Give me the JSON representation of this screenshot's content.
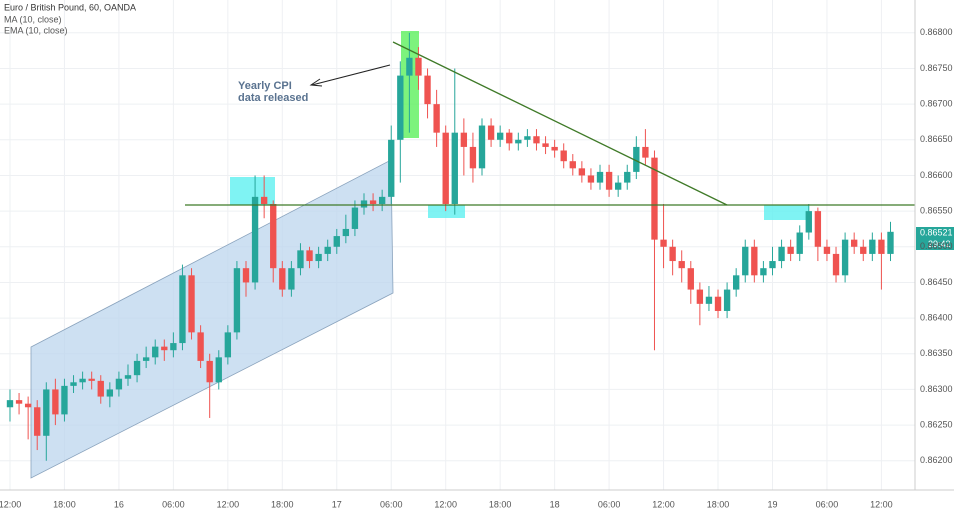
{
  "chart_data": {
    "type": "candlestick",
    "title": "Euro / British Pound, 60, OANDA",
    "indicators": [
      "MA (10, close)",
      "EMA (10, close)"
    ],
    "annotation": [
      "Yearly CPI",
      "data released"
    ],
    "last_price_label": "0.86521",
    "countdown": "29:42",
    "up_color": "#26a69a",
    "down_color": "#ef5350",
    "x": [
      0,
      1,
      2,
      3,
      4,
      5,
      6,
      7,
      8,
      9,
      10,
      11,
      12,
      13,
      14,
      15,
      16,
      17,
      18,
      19,
      20,
      21,
      22,
      23,
      24,
      25,
      26,
      27,
      28,
      29,
      30,
      31,
      32,
      33,
      34,
      35,
      36,
      37,
      38,
      39,
      40,
      41,
      42,
      43,
      44,
      45,
      46,
      47,
      48,
      49,
      50,
      51,
      52,
      53,
      54,
      55,
      56,
      57,
      58,
      59,
      60,
      61,
      62,
      63,
      64,
      65,
      66,
      67,
      68,
      69,
      70,
      71,
      72,
      73,
      74,
      75,
      76,
      77,
      78,
      79,
      80,
      81,
      82,
      83,
      84,
      85,
      86,
      87,
      88,
      89,
      90,
      91,
      92,
      93,
      94,
      95,
      96,
      97
    ],
    "open": [
      0.86275,
      0.86285,
      0.8628,
      0.86275,
      0.86235,
      0.863,
      0.86265,
      0.86305,
      0.8631,
      0.86315,
      0.86312,
      0.8629,
      0.863,
      0.86315,
      0.8632,
      0.8634,
      0.86345,
      0.8636,
      0.86355,
      0.86365,
      0.8646,
      0.8638,
      0.8634,
      0.8631,
      0.86345,
      0.8638,
      0.8647,
      0.8645,
      0.8657,
      0.8656,
      0.8647,
      0.8644,
      0.8647,
      0.86495,
      0.8648,
      0.8649,
      0.865,
      0.86515,
      0.86525,
      0.86555,
      0.86565,
      0.8656,
      0.8657,
      0.8665,
      0.8674,
      0.86765,
      0.8674,
      0.867,
      0.8666,
      0.8656,
      0.8666,
      0.8664,
      0.8661,
      0.8667,
      0.8665,
      0.8666,
      0.86645,
      0.8665,
      0.86655,
      0.86645,
      0.8664,
      0.86635,
      0.8662,
      0.8661,
      0.866,
      0.8659,
      0.86605,
      0.8658,
      0.8659,
      0.86605,
      0.8664,
      0.86625,
      0.8651,
      0.865,
      0.8648,
      0.8647,
      0.8644,
      0.8642,
      0.8643,
      0.8641,
      0.8644,
      0.8646,
      0.865,
      0.8646,
      0.8647,
      0.8648,
      0.865,
      0.8649,
      0.8652,
      0.8655,
      0.865,
      0.8649,
      0.8646,
      0.8651,
      0.865,
      0.8649,
      0.8651,
      0.8649
    ],
    "high": [
      0.863,
      0.86295,
      0.8629,
      0.86285,
      0.8631,
      0.86315,
      0.86315,
      0.8632,
      0.86325,
      0.86325,
      0.8632,
      0.8631,
      0.86325,
      0.86335,
      0.8635,
      0.8636,
      0.8637,
      0.8637,
      0.8638,
      0.86475,
      0.8647,
      0.8639,
      0.8635,
      0.86355,
      0.8639,
      0.8648,
      0.8648,
      0.866,
      0.866,
      0.86565,
      0.8648,
      0.8648,
      0.86505,
      0.865,
      0.865,
      0.8651,
      0.86525,
      0.86545,
      0.86565,
      0.86575,
      0.86575,
      0.8658,
      0.8667,
      0.8676,
      0.868,
      0.8678,
      0.8675,
      0.8672,
      0.8667,
      0.8675,
      0.8668,
      0.8666,
      0.8668,
      0.8668,
      0.8667,
      0.86665,
      0.8666,
      0.86665,
      0.86665,
      0.86655,
      0.8665,
      0.86645,
      0.8663,
      0.8662,
      0.8661,
      0.86615,
      0.86615,
      0.866,
      0.86615,
      0.86655,
      0.86665,
      0.86635,
      0.8656,
      0.8651,
      0.86495,
      0.8648,
      0.8645,
      0.86445,
      0.8644,
      0.8645,
      0.8647,
      0.8651,
      0.8651,
      0.8648,
      0.865,
      0.8651,
      0.8651,
      0.8653,
      0.8656,
      0.86555,
      0.8651,
      0.865,
      0.8652,
      0.8652,
      0.8651,
      0.8652,
      0.8652,
      0.86535
    ],
    "low": [
      0.86255,
      0.86265,
      0.8623,
      0.86215,
      0.862,
      0.8625,
      0.86255,
      0.86295,
      0.863,
      0.863,
      0.8628,
      0.86275,
      0.8629,
      0.86305,
      0.8631,
      0.8633,
      0.86335,
      0.8634,
      0.86345,
      0.86355,
      0.8637,
      0.8633,
      0.8626,
      0.863,
      0.86335,
      0.8637,
      0.8643,
      0.8644,
      0.8654,
      0.8645,
      0.8643,
      0.8643,
      0.8646,
      0.8647,
      0.8647,
      0.8648,
      0.8649,
      0.86505,
      0.86515,
      0.86545,
      0.8655,
      0.8655,
      0.8656,
      0.8659,
      0.8666,
      0.8672,
      0.8668,
      0.8664,
      0.8655,
      0.86545,
      0.866,
      0.8659,
      0.866,
      0.8664,
      0.8664,
      0.86635,
      0.86635,
      0.8664,
      0.86635,
      0.8663,
      0.86625,
      0.8661,
      0.866,
      0.8659,
      0.8658,
      0.8658,
      0.8657,
      0.8657,
      0.8658,
      0.86595,
      0.86615,
      0.86355,
      0.8647,
      0.8646,
      0.8645,
      0.8642,
      0.8639,
      0.8641,
      0.864,
      0.864,
      0.8643,
      0.8645,
      0.8645,
      0.8645,
      0.8646,
      0.8647,
      0.8648,
      0.8648,
      0.8651,
      0.8648,
      0.8648,
      0.8645,
      0.8645,
      0.8649,
      0.8648,
      0.8648,
      0.8644,
      0.8648
    ],
    "close": [
      0.86285,
      0.8628,
      0.86275,
      0.86235,
      0.863,
      0.86265,
      0.86305,
      0.8631,
      0.86315,
      0.86312,
      0.8629,
      0.863,
      0.86315,
      0.8632,
      0.8634,
      0.86345,
      0.8636,
      0.86355,
      0.86365,
      0.8646,
      0.8638,
      0.8634,
      0.8631,
      0.86345,
      0.8638,
      0.8647,
      0.8645,
      0.8657,
      0.8656,
      0.8647,
      0.8644,
      0.8647,
      0.86495,
      0.8648,
      0.8649,
      0.865,
      0.86515,
      0.86525,
      0.86555,
      0.86565,
      0.8656,
      0.8657,
      0.8665,
      0.8674,
      0.86765,
      0.8674,
      0.867,
      0.8666,
      0.8656,
      0.8666,
      0.8664,
      0.8661,
      0.8667,
      0.8665,
      0.8666,
      0.86645,
      0.8665,
      0.86655,
      0.86645,
      0.8664,
      0.86635,
      0.8662,
      0.8661,
      0.866,
      0.8659,
      0.86605,
      0.8658,
      0.8659,
      0.86605,
      0.8664,
      0.86625,
      0.8651,
      0.865,
      0.8648,
      0.8647,
      0.8644,
      0.8642,
      0.8643,
      0.8641,
      0.8644,
      0.8646,
      0.865,
      0.8646,
      0.8647,
      0.8648,
      0.865,
      0.8649,
      0.8652,
      0.8655,
      0.865,
      0.8649,
      0.8646,
      0.8651,
      0.865,
      0.8649,
      0.8651,
      0.8649,
      0.86521
    ],
    "xlim": [
      -1.1,
      99.7
    ],
    "ylim": [
      0.86159,
      0.86846
    ],
    "xticks": [
      {
        "value": 0,
        "label": "12:00"
      },
      {
        "value": 6,
        "label": "18:00"
      },
      {
        "value": 12,
        "label": "16"
      },
      {
        "value": 18,
        "label": "06:00"
      },
      {
        "value": 24,
        "label": "12:00"
      },
      {
        "value": 30,
        "label": "18:00"
      },
      {
        "value": 36,
        "label": "17"
      },
      {
        "value": 42,
        "label": "06:00"
      },
      {
        "value": 48,
        "label": "12:00"
      },
      {
        "value": 54,
        "label": "18:00"
      },
      {
        "value": 60,
        "label": "18"
      },
      {
        "value": 66,
        "label": "06:00"
      },
      {
        "value": 72,
        "label": "12:00"
      },
      {
        "value": 78,
        "label": "18:00"
      },
      {
        "value": 84,
        "label": "19"
      },
      {
        "value": 90,
        "label": "06:00"
      },
      {
        "value": 96,
        "label": "12:00"
      }
    ],
    "yticks": [
      {
        "value": 0.862,
        "label": "0.86200"
      },
      {
        "value": 0.8625,
        "label": "0.86250"
      },
      {
        "value": 0.863,
        "label": "0.86300"
      },
      {
        "value": 0.8635,
        "label": "0.86350"
      },
      {
        "value": 0.864,
        "label": "0.86400"
      },
      {
        "value": 0.8645,
        "label": "0.86450"
      },
      {
        "value": 0.865,
        "label": "0.86500"
      },
      {
        "value": 0.8655,
        "label": "0.86550"
      },
      {
        "value": 0.866,
        "label": "0.86600"
      },
      {
        "value": 0.8665,
        "label": "0.86650"
      },
      {
        "value": 0.867,
        "label": "0.86700"
      },
      {
        "value": 0.8675,
        "label": "0.86750"
      },
      {
        "value": 0.868,
        "label": "0.86800"
      }
    ],
    "grid": true
  }
}
